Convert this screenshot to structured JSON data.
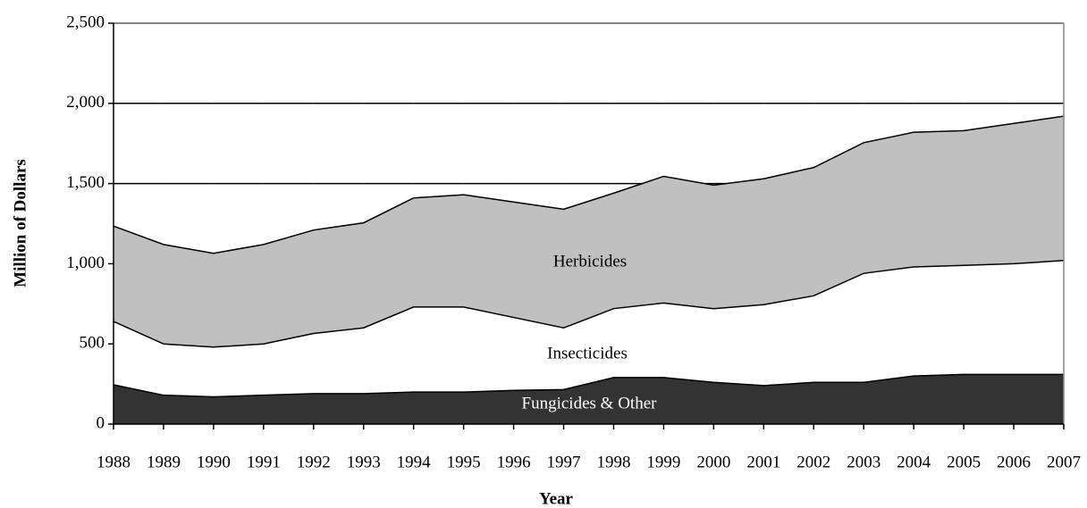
{
  "chart_data": {
    "type": "stacked_area",
    "x_label": "Year",
    "y_label": "Million of Dollars",
    "categories": [
      "1988",
      "1989",
      "1990",
      "1991",
      "1992",
      "1993",
      "1994",
      "1995",
      "1996",
      "1997",
      "1998",
      "1999",
      "2000",
      "2001",
      "2002",
      "2003",
      "2004",
      "2005",
      "2006",
      "2007"
    ],
    "series": [
      {
        "name": "Fungicides & Other",
        "color": "#333333",
        "values": [
          245,
          180,
          170,
          180,
          190,
          190,
          200,
          200,
          210,
          215,
          290,
          290,
          260,
          240,
          260,
          260,
          300,
          310,
          310,
          310
        ]
      },
      {
        "name": "Insecticides",
        "color": "#ffffff",
        "values": [
          395,
          320,
          310,
          320,
          375,
          410,
          530,
          530,
          455,
          385,
          430,
          465,
          460,
          505,
          540,
          680,
          680,
          680,
          690,
          710
        ]
      },
      {
        "name": "Herbicides",
        "color": "#c0c0c0",
        "values": [
          595,
          620,
          585,
          620,
          645,
          655,
          680,
          700,
          720,
          740,
          720,
          790,
          770,
          785,
          800,
          815,
          840,
          840,
          875,
          900
        ]
      }
    ],
    "ylim": [
      0,
      2500
    ],
    "yticks": [
      0,
      500,
      {
        "value": 1000,
        "label": "1,000"
      },
      {
        "value": 1500,
        "label": "1,500"
      },
      {
        "value": 2000,
        "label": "2,000"
      },
      {
        "value": 2500,
        "label": "2,500"
      }
    ],
    "grid": true
  }
}
